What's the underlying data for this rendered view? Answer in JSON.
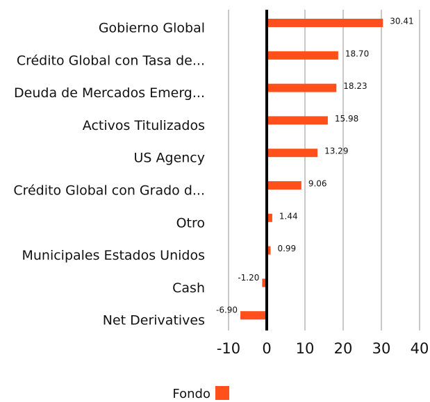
{
  "chart_data": {
    "type": "bar",
    "orientation": "horizontal",
    "categories": [
      "Gobierno Global",
      "Crédito Global con Tasa de...",
      "Deuda de Mercados Emerg...",
      "Activos Titulizados",
      "US Agency",
      "Crédito Global con Grado d...",
      "Otro",
      "Municipales Estados Unidos",
      "Cash",
      "Net Derivatives"
    ],
    "series": [
      {
        "name": "Fondo",
        "color": "#ff4f1a",
        "values": [
          30.41,
          18.7,
          18.23,
          15.98,
          13.29,
          9.06,
          1.44,
          0.99,
          -1.2,
          -6.9
        ],
        "value_labels": [
          "30.41",
          "18.70",
          "18.23",
          "15.98",
          "13.29",
          "9.06",
          "1.44",
          "0.99",
          "-1.20",
          "-6.90"
        ]
      }
    ],
    "xlim": [
      -10,
      40
    ],
    "xticks": [
      -10,
      0,
      10,
      20,
      30,
      40
    ],
    "grid": true,
    "legend": "bottom"
  }
}
